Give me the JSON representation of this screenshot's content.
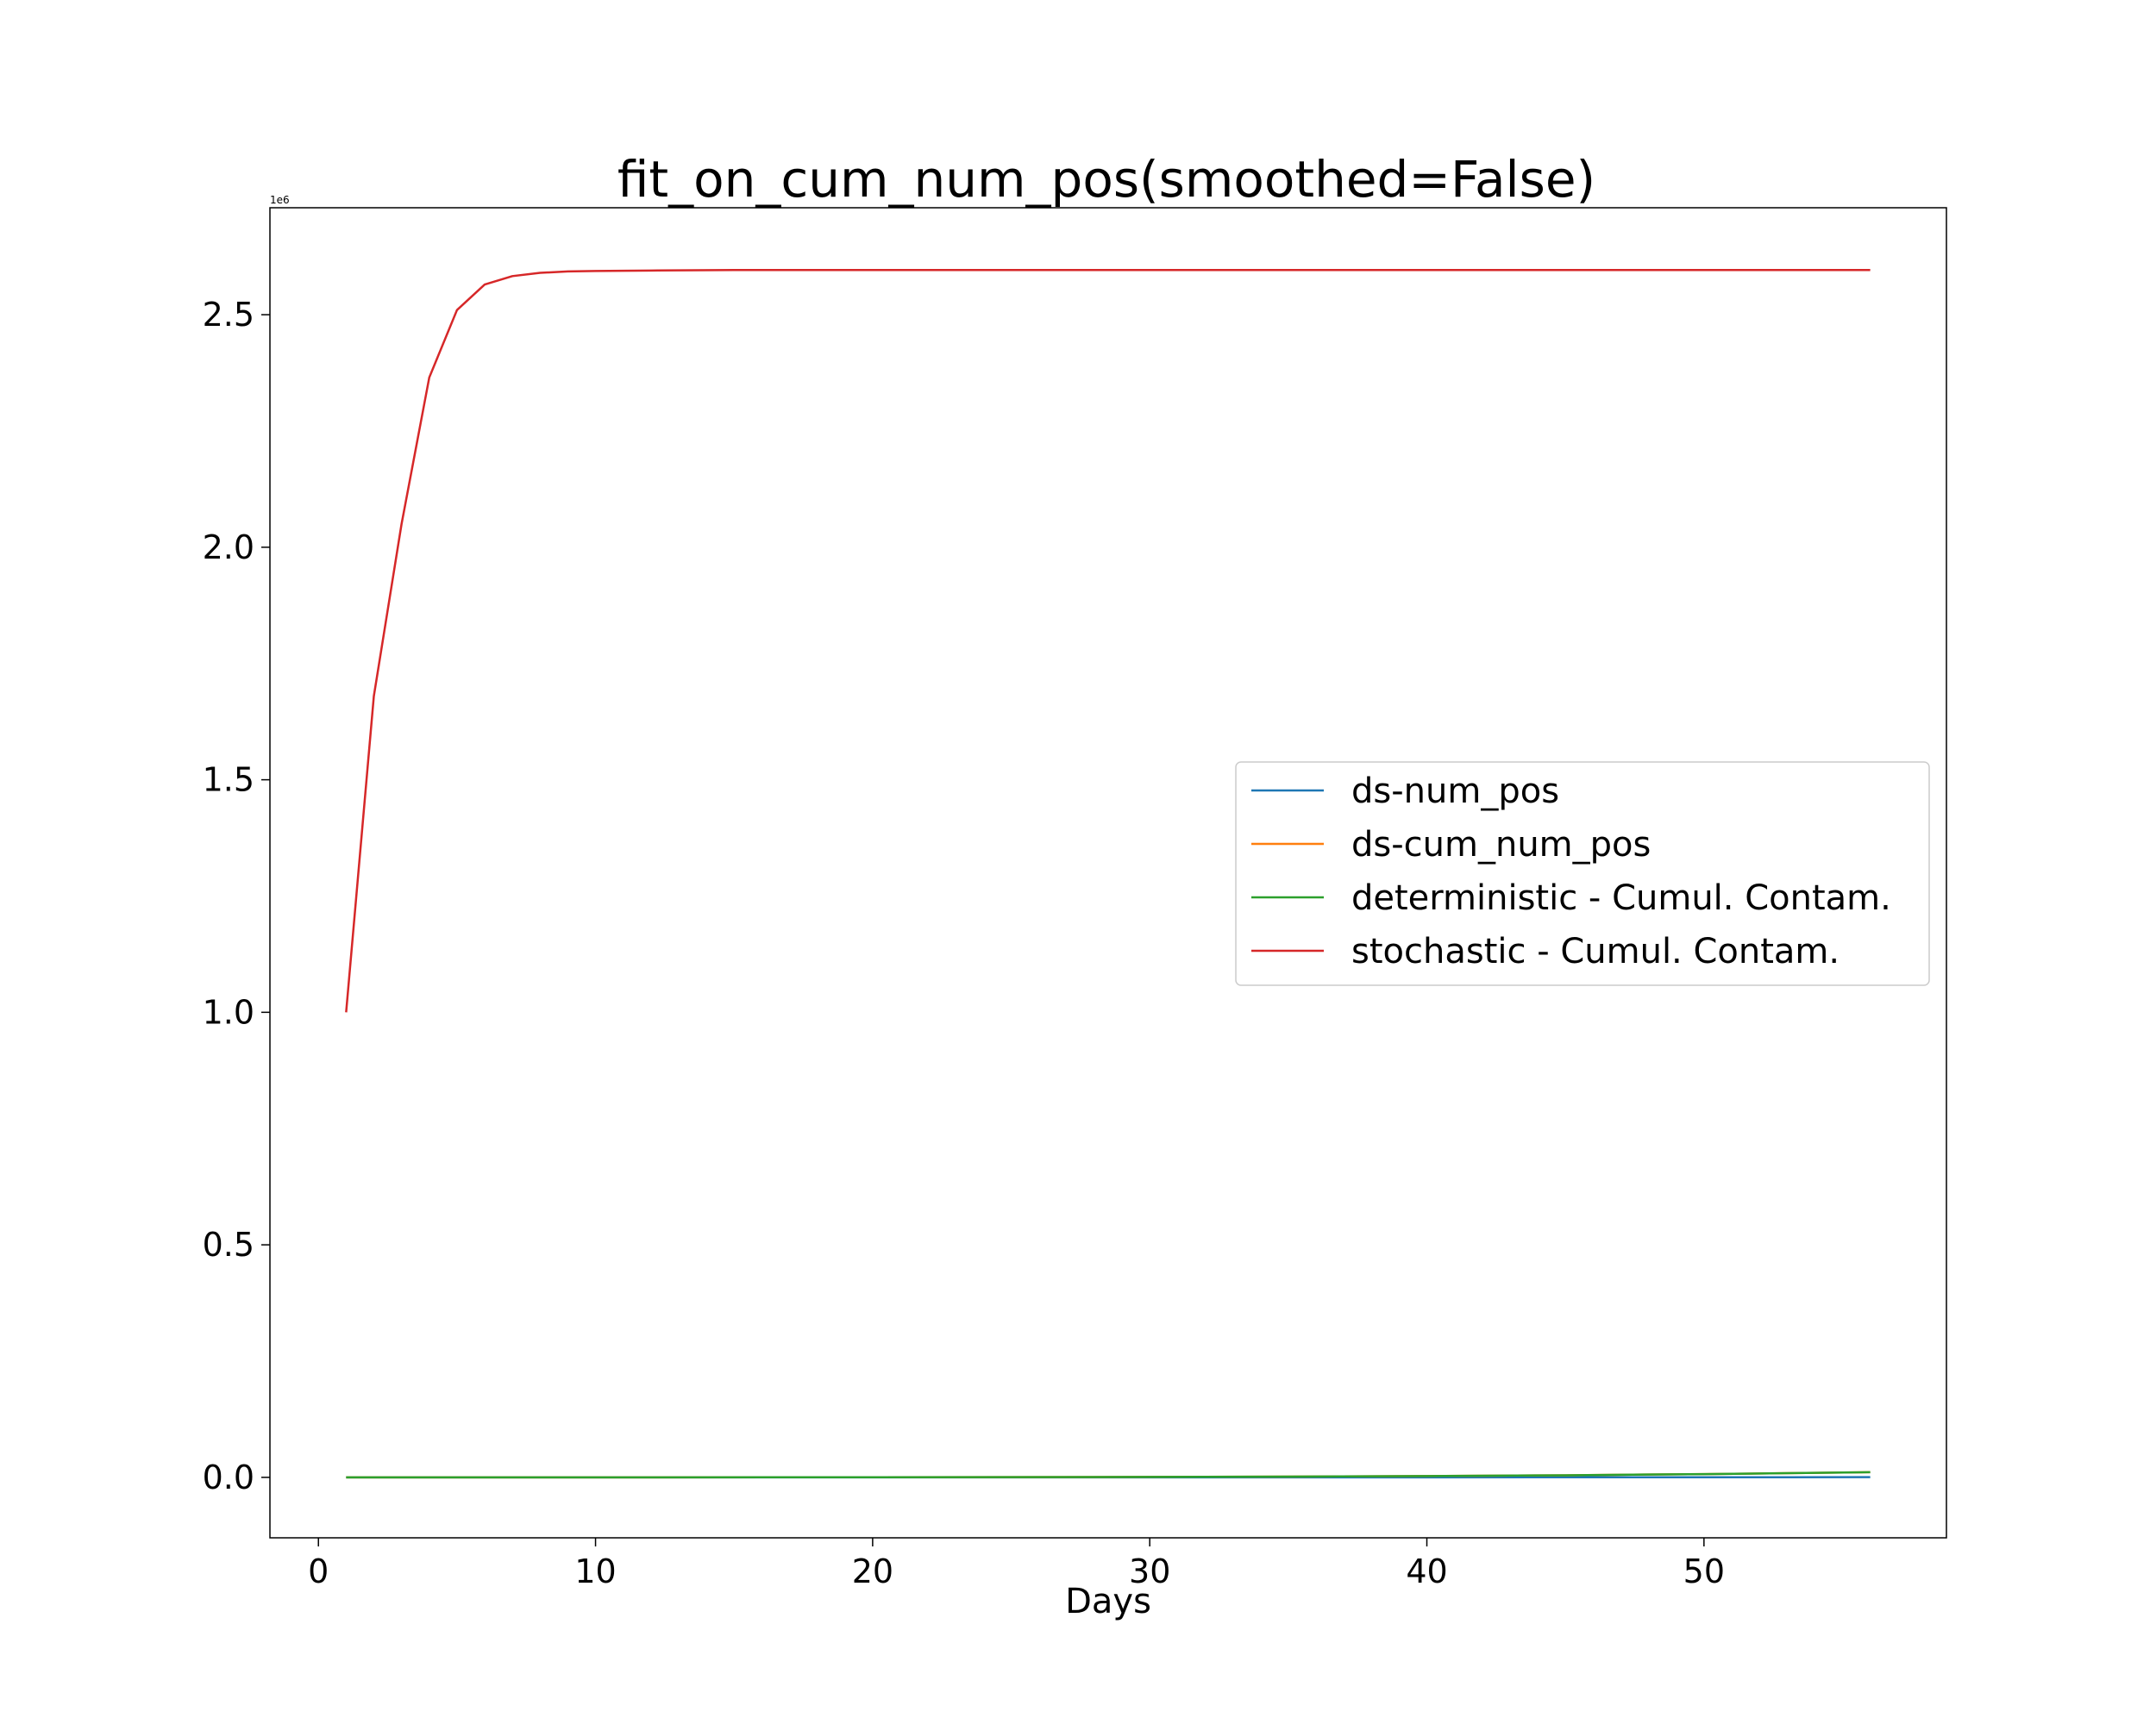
{
  "chart_data": {
    "type": "line",
    "title": "fit_on_cum_num_pos(smoothed=False)",
    "xlabel": "Days",
    "ylabel": "",
    "y_offset_label": "1e6",
    "xlim": [
      -1.75,
      58.75
    ],
    "ylim": [
      -130000,
      2730000
    ],
    "xticks": [
      0,
      10,
      20,
      30,
      40,
      50
    ],
    "xtick_labels": [
      "0",
      "10",
      "20",
      "30",
      "40",
      "50"
    ],
    "yticks": [
      0,
      500000,
      1000000,
      1500000,
      2000000,
      2500000
    ],
    "ytick_labels": [
      "0.0",
      "0.5",
      "1.0",
      "1.5",
      "2.0",
      "2.5"
    ],
    "grid": false,
    "legend_position": "center-right",
    "series": [
      {
        "name": "ds-num_pos",
        "color": "#1f77b4",
        "x": [
          1,
          10,
          20,
          30,
          40,
          45,
          50,
          53,
          56
        ],
        "y": [
          0,
          0,
          10,
          30,
          80,
          150,
          250,
          320,
          400
        ]
      },
      {
        "name": "ds-cum_num_pos",
        "color": "#ff7f0e",
        "x": [
          1,
          10,
          20,
          30,
          35,
          40,
          45,
          50,
          53,
          56
        ],
        "y": [
          0,
          20,
          200,
          800,
          1500,
          2800,
          4500,
          7000,
          9000,
          11000
        ]
      },
      {
        "name": "deterministic - Cumul. Contam.",
        "color": "#2ca02c",
        "x": [
          1,
          10,
          20,
          30,
          35,
          40,
          45,
          50,
          53,
          56
        ],
        "y": [
          0,
          20,
          200,
          800,
          1500,
          2800,
          4500,
          7000,
          9000,
          11000
        ]
      },
      {
        "name": "stochastic - Cumul. Contam.",
        "color": "#d62728",
        "x": [
          1,
          2,
          3,
          4,
          5,
          6,
          7,
          8,
          9,
          10,
          12,
          15,
          20,
          30,
          40,
          50,
          56
        ],
        "y": [
          1000000,
          1680000,
          2050000,
          2365000,
          2510000,
          2565000,
          2583000,
          2590000,
          2593000,
          2594000,
          2595000,
          2596000,
          2596000,
          2596000,
          2596000,
          2596000,
          2596000
        ]
      }
    ]
  }
}
